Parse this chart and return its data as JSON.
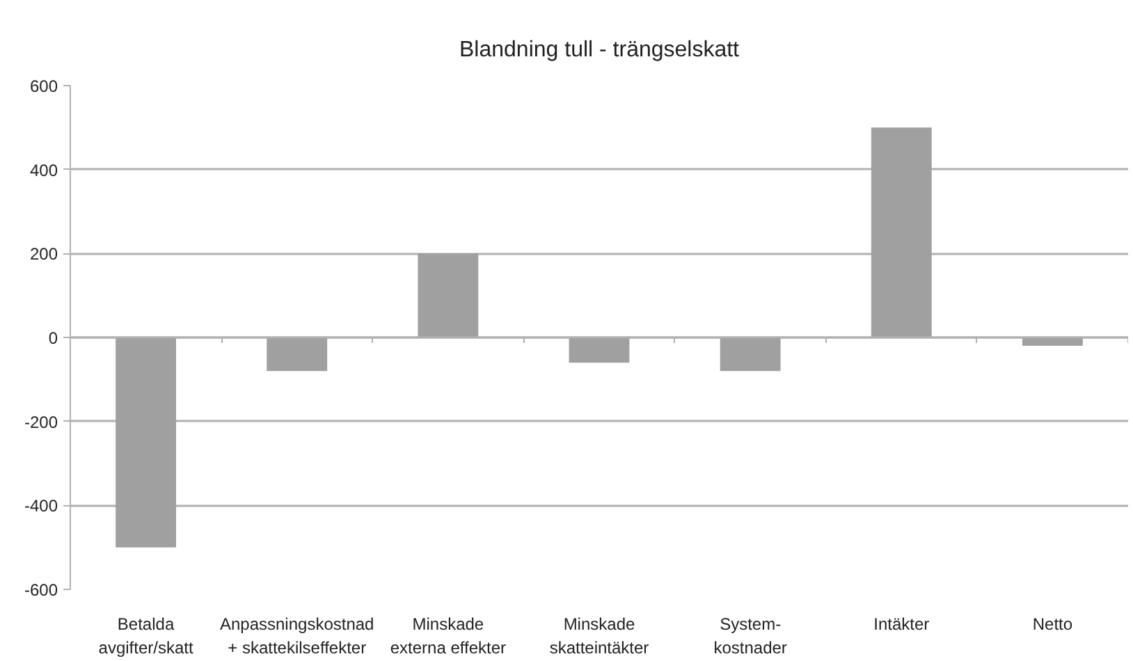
{
  "chart_data": {
    "type": "bar",
    "title": "Blandning tull - trängselskatt",
    "categories": [
      "Betalda\navgifter/skatt",
      "Anpassningskostnad\n+ skattekilseffekter",
      "Minskade\nexterna effekter",
      "Minskade\nskatteintäkter",
      "System-\nkostnader",
      "Intäkter",
      "Netto"
    ],
    "values": [
      -500,
      -80,
      200,
      -60,
      -80,
      500,
      -20
    ],
    "color": "#a0a0a0",
    "ylim": [
      -600,
      600
    ],
    "yticks": [
      -600,
      -400,
      -200,
      0,
      200,
      400,
      600
    ],
    "grid": "y"
  }
}
